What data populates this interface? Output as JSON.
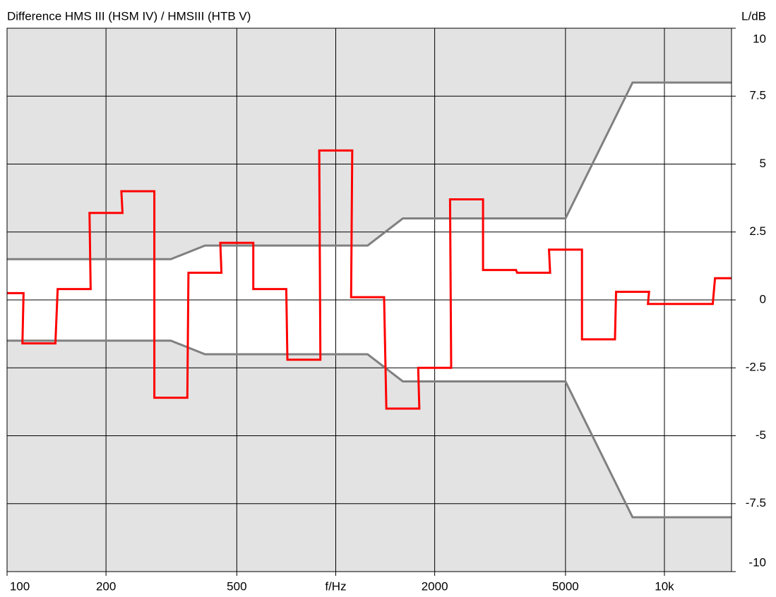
{
  "chart_data": {
    "type": "step",
    "title": "Difference HMS III (HSM IV) / HMSIII (HTB V)",
    "y_label": "L/dB",
    "log_x": true,
    "grid": true,
    "xlim": [
      100,
      16000
    ],
    "ylim": [
      -10,
      10
    ],
    "xticks": [
      100,
      200,
      500,
      {
        "value": 1000,
        "label": "f/Hz"
      },
      2000,
      5000,
      {
        "value": 10000,
        "label": "10k"
      }
    ],
    "yticks": [
      10,
      7.5,
      5,
      2.5,
      0,
      -2.5,
      -5,
      -7.5,
      -10
    ],
    "series": [
      {
        "style": "step",
        "color": "#ff0000",
        "x": [
          100,
          125,
          160,
          200,
          250,
          315,
          400,
          500,
          630,
          800,
          1000,
          1250,
          1600,
          2000,
          2500,
          3150,
          4000,
          5000,
          6300,
          8000,
          10000,
          12500,
          16000
        ],
        "values": [
          0.25,
          -1.6,
          0.4,
          3.2,
          4.0,
          -3.6,
          1.0,
          2.1,
          0.4,
          -2.2,
          5.5,
          0.1,
          -4.0,
          -2.5,
          3.7,
          1.1,
          1.0,
          1.85,
          -1.45,
          0.3,
          -0.15,
          -0.15,
          0.8
        ]
      },
      {
        "style": "line",
        "color": "#808080",
        "x": [
          100,
          315,
          400,
          1250,
          1600,
          5000,
          8000,
          16000
        ],
        "values": [
          1.5,
          1.5,
          2,
          2,
          3,
          3,
          8,
          8
        ]
      },
      {
        "style": "line",
        "color": "#808080",
        "x": [
          100,
          315,
          400,
          1250,
          1600,
          5000,
          8000,
          16000
        ],
        "values": [
          -1.5,
          -1.5,
          -2,
          -2,
          -3,
          -3,
          -8,
          -8
        ]
      }
    ]
  }
}
